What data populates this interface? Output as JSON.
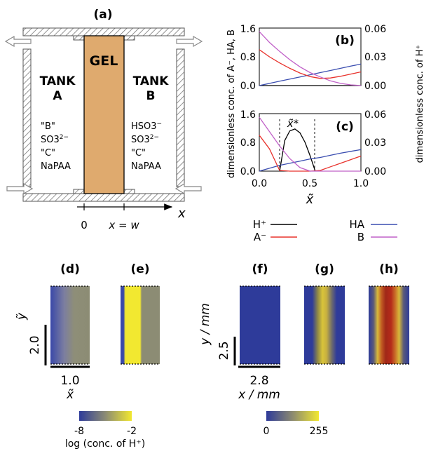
{
  "panel_a": {
    "label": "(a)",
    "gel": "GEL",
    "tank_a": {
      "title_1": "TANK",
      "title_2": "A",
      "species": [
        "\"B\"",
        "SO3",
        "\"C\"",
        "NaPAA"
      ],
      "so3_charge": "2−"
    },
    "tank_b": {
      "title_1": "TANK",
      "title_2": "B",
      "species": [
        "HSO3",
        "SO3",
        "\"C\"",
        "NaPAA"
      ],
      "hso3_charge": "−",
      "so3_charge": "2−"
    },
    "axis_x": "x",
    "tick_zero": "0",
    "tick_w": "x = w"
  },
  "panel_b": {
    "label": "(b)"
  },
  "panel_c": {
    "label": "(c)",
    "marker": "x̃*"
  },
  "plot_axes": {
    "ylabel_left": "dimensionless conc. of A⁻, HA, B",
    "ylabel_right": "dimensionless conc. of H⁺",
    "xlabel": "x̃",
    "x_ticks": [
      "0.0",
      "0.5",
      "1.0"
    ],
    "y_left_ticks": [
      "0.0",
      "0.8",
      "1.6"
    ],
    "y_right_ticks": [
      "0.00",
      "0.03",
      "0.06"
    ]
  },
  "legend": {
    "items": [
      {
        "name": "H⁺",
        "color": "#000000"
      },
      {
        "name": "HA",
        "color": "#3a4db0"
      },
      {
        "name": "A⁻",
        "color": "#e8322c"
      },
      {
        "name": "B",
        "color": "#c060c8"
      }
    ]
  },
  "panels_bottom": {
    "labels": [
      "(d)",
      "(e)",
      "(f)",
      "(g)",
      "(h)"
    ],
    "sim_scale": {
      "y_label": "ỹ",
      "y_value": "2.0",
      "x_value": "1.0",
      "x_label": "x̃"
    },
    "exp_scale": {
      "y_label": "y / mm",
      "y_value": "2.5",
      "x_value": "2.8",
      "x_label": "x / mm"
    },
    "colorbar_log": {
      "min": "-8",
      "max": "-2",
      "label": "log (conc. of H⁺)"
    },
    "colorbar_int": {
      "min": "0",
      "max": "255"
    }
  },
  "colors": {
    "gel": "#dfaa6e",
    "tank_hatch": "#777777",
    "blue_field": "#2e3b9a",
    "yellow": "#f2e830",
    "grey_green": "#8c8c74",
    "red": "#b52a1a"
  },
  "chart_data": [
    {
      "type": "line",
      "panel": "(b)",
      "title": "",
      "xlabel": "x̃",
      "ylabel": "dimensionless conc. of A⁻, HA, B",
      "y2label": "dimensionless conc. of H⁺",
      "xlim": [
        0,
        1
      ],
      "ylim": [
        0,
        1.6
      ],
      "y2lim": [
        0,
        0.06
      ],
      "x": [
        0,
        0.1,
        0.2,
        0.3,
        0.4,
        0.5,
        0.6,
        0.7,
        0.8,
        0.9,
        1.0
      ],
      "series": [
        {
          "name": "H⁺",
          "axis": "right",
          "values": [
            0,
            0,
            0,
            0,
            0,
            0,
            0,
            0,
            0,
            0,
            0
          ]
        },
        {
          "name": "HA",
          "axis": "left",
          "values": [
            0,
            0.06,
            0.12,
            0.18,
            0.24,
            0.3,
            0.36,
            0.42,
            0.48,
            0.54,
            0.6
          ]
        },
        {
          "name": "A⁻",
          "axis": "left",
          "values": [
            1.0,
            0.8,
            0.63,
            0.48,
            0.35,
            0.25,
            0.2,
            0.21,
            0.26,
            0.32,
            0.38
          ]
        },
        {
          "name": "B",
          "axis": "left",
          "values": [
            1.5,
            1.2,
            0.95,
            0.72,
            0.52,
            0.36,
            0.24,
            0.13,
            0.06,
            0.02,
            0
          ]
        }
      ]
    },
    {
      "type": "line",
      "panel": "(c)",
      "title": "",
      "xlabel": "x̃",
      "ylabel": "dimensionless conc. of A⁻, HA, B",
      "y2label": "dimensionless conc. of H⁺",
      "xlim": [
        0,
        1
      ],
      "ylim": [
        0,
        1.6
      ],
      "y2lim": [
        0,
        0.06
      ],
      "x": [
        0,
        0.1,
        0.2,
        0.3,
        0.4,
        0.5,
        0.6,
        0.7,
        0.8,
        0.9,
        1.0
      ],
      "series": [
        {
          "name": "H⁺",
          "axis": "right",
          "x": [
            0.2,
            0.25,
            0.3,
            0.35,
            0.4,
            0.45,
            0.5,
            0.55
          ],
          "values": [
            0,
            0.032,
            0.042,
            0.044,
            0.04,
            0.03,
            0.016,
            0
          ]
        },
        {
          "name": "HA",
          "axis": "left",
          "values": [
            0,
            0.08,
            0.16,
            0.22,
            0.28,
            0.34,
            0.38,
            0.44,
            0.5,
            0.55,
            0.6
          ]
        },
        {
          "name": "A⁻",
          "axis": "left",
          "values": [
            1.0,
            0.62,
            0.02,
            0,
            0,
            0,
            0.02,
            0.12,
            0.22,
            0.32,
            0.42
          ]
        },
        {
          "name": "B",
          "axis": "left",
          "values": [
            1.5,
            1.1,
            0.7,
            0.35,
            0.1,
            0,
            0,
            0,
            0,
            0,
            0
          ]
        }
      ]
    }
  ]
}
